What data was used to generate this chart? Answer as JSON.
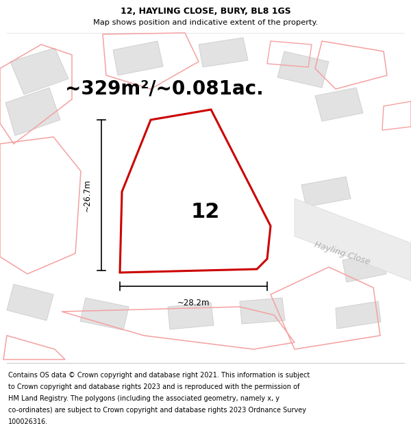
{
  "title_line1": "12, HAYLING CLOSE, BURY, BL8 1GS",
  "title_line2": "Map shows position and indicative extent of the property.",
  "area_text": "~329m²/~0.081ac.",
  "dim_width": "~28.2m",
  "dim_height": "~26.7m",
  "label_number": "12",
  "road_label": "Hayling Close",
  "footer_text": "Contains OS data © Crown copyright and database right 2021. This information is subject to Crown copyright and database rights 2023 and is reproduced with the permission of HM Land Registry. The polygons (including the associated geometry, namely x, y co-ordinates) are subject to Crown copyright and database rights 2023 Ordnance Survey 100026316.",
  "main_poly_color": "#ffffff",
  "main_poly_edge": "#cc0000",
  "bg_poly_fill": "#e2e2e2",
  "bg_poly_edge": "#d0d0d0",
  "neighbor_line_color": "#f5a0a0",
  "title_fontsize": 9.0,
  "subtitle_fontsize": 8.2,
  "area_fontsize": 20,
  "label_fontsize": 22,
  "road_fontsize": 9,
  "footer_fontsize": 7.0
}
